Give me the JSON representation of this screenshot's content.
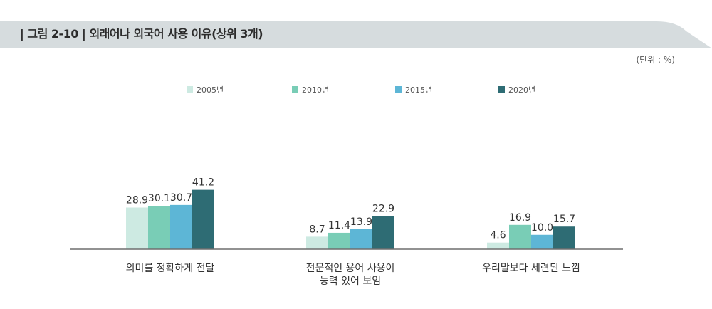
{
  "header": {
    "title": "| 그림 2-10 | 외래어나 외국어 사용 이유(상위 3개)",
    "unit": "(단위 : %)"
  },
  "colors": {
    "banner": "#d6dcde",
    "series": [
      "#cdeae2",
      "#79cdb6",
      "#5db6d6",
      "#2e6c74"
    ],
    "axis": "#6f6f6f"
  },
  "chart_data": {
    "type": "bar",
    "categories": [
      [
        "의미를 정확하게 전달"
      ],
      [
        "전문적인 용어 사용이",
        "능력 있어 보임"
      ],
      [
        "우리말보다 세련된 느낌"
      ]
    ],
    "series": [
      {
        "name": "2005년",
        "values": [
          28.9,
          8.7,
          4.6
        ]
      },
      {
        "name": "2010년",
        "values": [
          30.1,
          11.4,
          16.9
        ]
      },
      {
        "name": "2015년",
        "values": [
          30.7,
          13.9,
          10.0
        ]
      },
      {
        "name": "2020년",
        "values": [
          41.2,
          22.9,
          15.7
        ]
      }
    ],
    "value_labels": [
      [
        "28.9",
        "8.7",
        "4.6"
      ],
      [
        "30.1",
        "11.4",
        "16.9"
      ],
      [
        "30.7",
        "13.9",
        "10.0"
      ],
      [
        "41.2",
        "22.9",
        "15.7"
      ]
    ],
    "ylim": [
      0,
      42
    ],
    "legend": "top",
    "grid": false
  }
}
